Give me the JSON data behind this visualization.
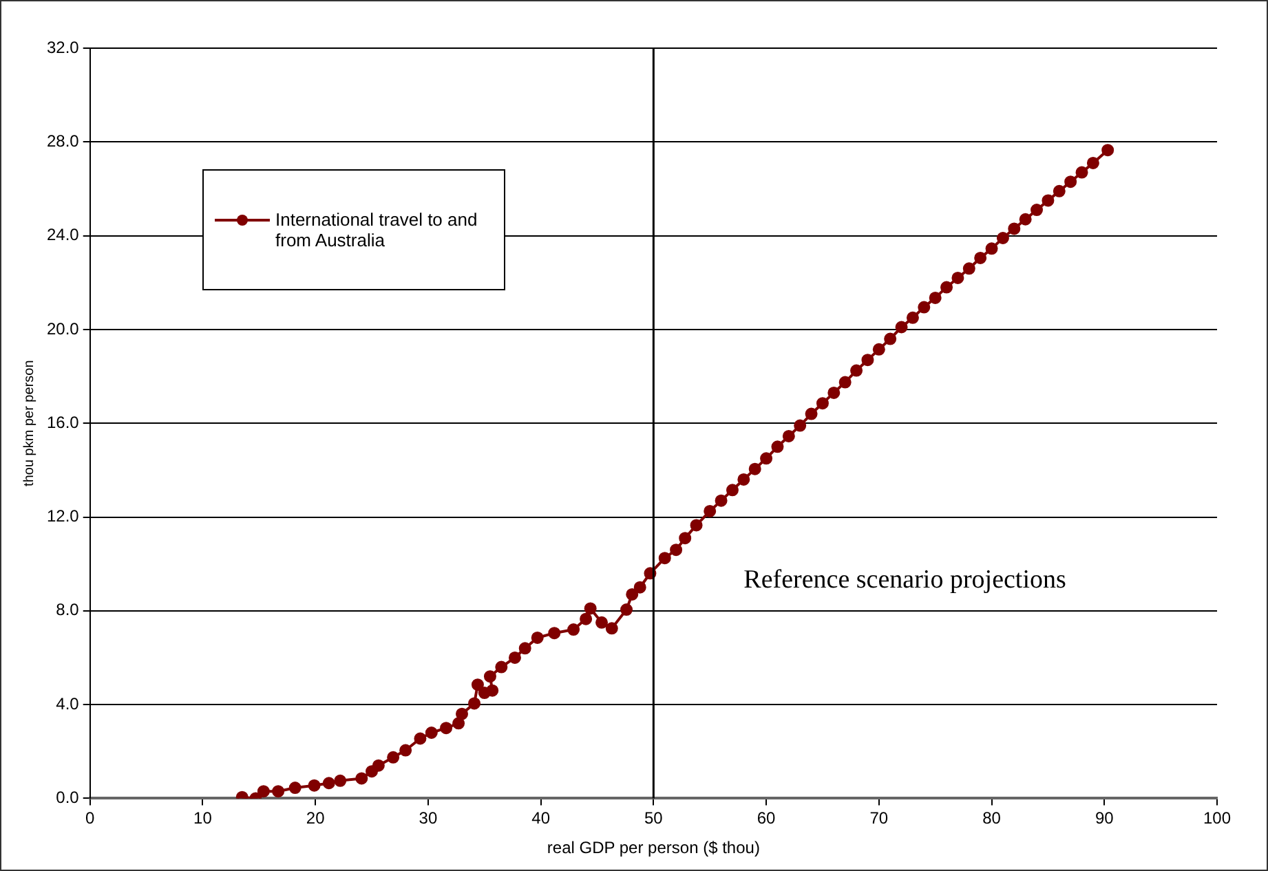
{
  "chart_data": {
    "type": "line",
    "xlabel": "real GDP per person ($ thou)",
    "ylabel": "thou pkm per person",
    "x": [
      13.5,
      14.7,
      15.4,
      16.7,
      18.2,
      19.9,
      21.2,
      22.2,
      24.1,
      25,
      25.6,
      26.9,
      28,
      29.3,
      30.3,
      31.6,
      32.7,
      33,
      34.1,
      34.4,
      35,
      35.7,
      35.5,
      36.5,
      37.7,
      38.6,
      39.7,
      41.2,
      42.9,
      44,
      44.4,
      45.4,
      46.3,
      47.6,
      48.1,
      48.8,
      49.7,
      51,
      52,
      52.8,
      53.8,
      55,
      56,
      57,
      58,
      59,
      60,
      61,
      62,
      63,
      64,
      65,
      66,
      67,
      68,
      69,
      70,
      71,
      72,
      73,
      74,
      75,
      76,
      77,
      78,
      79,
      80,
      81,
      82,
      83,
      84,
      85,
      86,
      87,
      88,
      89,
      90.3
    ],
    "series": [
      {
        "name": "International travel to and from Australia",
        "color": "#800000",
        "values": [
          0.05,
          0.0,
          0.3,
          0.3,
          0.45,
          0.55,
          0.65,
          0.75,
          0.85,
          1.15,
          1.4,
          1.75,
          2.05,
          2.55,
          2.8,
          3.0,
          3.2,
          3.6,
          4.05,
          4.85,
          4.5,
          4.6,
          5.2,
          5.6,
          6.0,
          6.4,
          6.85,
          7.05,
          7.2,
          7.65,
          8.1,
          7.5,
          7.25,
          8.05,
          8.7,
          9.0,
          9.6,
          10.25,
          10.6,
          11.1,
          11.65,
          12.25,
          12.7,
          13.15,
          13.6,
          14.05,
          14.5,
          15.0,
          15.45,
          15.9,
          16.4,
          16.85,
          17.3,
          17.75,
          18.25,
          18.7,
          19.15,
          19.6,
          20.1,
          20.5,
          20.95,
          21.35,
          21.8,
          22.2,
          22.6,
          23.05,
          23.45,
          23.9,
          24.3,
          24.7,
          25.1,
          25.5,
          25.9,
          26.3,
          26.7,
          27.1,
          27.65
        ]
      }
    ],
    "xlim": [
      0,
      100
    ],
    "xticks": [
      0,
      10,
      20,
      30,
      40,
      50,
      60,
      70,
      80,
      90,
      100
    ],
    "ylim": [
      0,
      32
    ],
    "yticks": [
      {
        "value": 0,
        "label": "0.0"
      },
      {
        "value": 4,
        "label": "4.0"
      },
      {
        "value": 8,
        "label": "8.0"
      },
      {
        "value": 12,
        "label": "12.0"
      },
      {
        "value": 16,
        "label": "16.0"
      },
      {
        "value": 20,
        "label": "20.0"
      },
      {
        "value": 24,
        "label": "24.0"
      },
      {
        "value": 28,
        "label": "28.0"
      },
      {
        "value": 32,
        "label": "32.0"
      }
    ],
    "grid": "y",
    "legend": "top left",
    "marker": "circle",
    "line_style": "solid",
    "ref_lines": [
      {
        "axis": "x",
        "value": 50,
        "color": "#000000"
      }
    ],
    "annotations": [
      "Reference scenario projections"
    ]
  }
}
